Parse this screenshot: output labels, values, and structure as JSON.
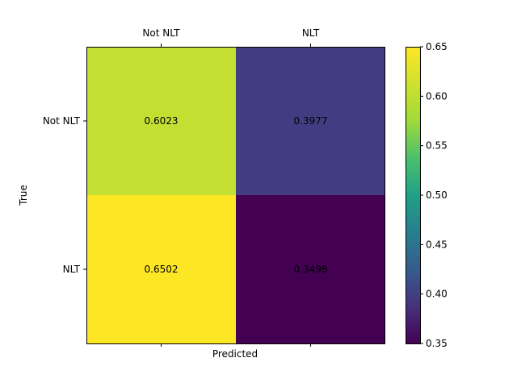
{
  "chart_data": {
    "type": "heatmap",
    "title": "",
    "xlabel": "Predicted",
    "ylabel": "True",
    "x_categories": [
      "Not NLT",
      "NLT"
    ],
    "y_categories": [
      "Not NLT",
      "NLT"
    ],
    "values": [
      [
        0.6023,
        0.3977
      ],
      [
        0.6502,
        0.3498
      ]
    ],
    "value_labels": [
      [
        "0.6023",
        "0.3977"
      ],
      [
        "0.6502",
        "0.3498"
      ]
    ],
    "colormap": "viridis",
    "color_range": [
      0.35,
      0.65
    ],
    "colorbar_ticks": [
      0.35,
      0.4,
      0.45,
      0.5,
      0.55,
      0.6,
      0.65
    ],
    "colorbar_tick_labels": [
      "0.35",
      "0.40",
      "0.45",
      "0.50",
      "0.55",
      "0.60",
      "0.65"
    ],
    "x_tick_position": "top",
    "grid": false
  }
}
